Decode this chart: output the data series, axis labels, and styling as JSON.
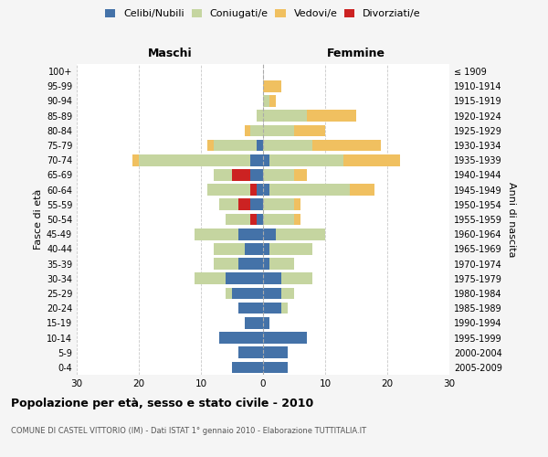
{
  "age_groups": [
    "0-4",
    "5-9",
    "10-14",
    "15-19",
    "20-24",
    "25-29",
    "30-34",
    "35-39",
    "40-44",
    "45-49",
    "50-54",
    "55-59",
    "60-64",
    "65-69",
    "70-74",
    "75-79",
    "80-84",
    "85-89",
    "90-94",
    "95-99",
    "100+"
  ],
  "birth_years": [
    "2005-2009",
    "2000-2004",
    "1995-1999",
    "1990-1994",
    "1985-1989",
    "1980-1984",
    "1975-1979",
    "1970-1974",
    "1965-1969",
    "1960-1964",
    "1955-1959",
    "1950-1954",
    "1945-1949",
    "1940-1944",
    "1935-1939",
    "1930-1934",
    "1925-1929",
    "1920-1924",
    "1915-1919",
    "1910-1914",
    "≤ 1909"
  ],
  "male": {
    "celibi": [
      5,
      4,
      7,
      3,
      4,
      5,
      6,
      4,
      3,
      4,
      1,
      2,
      1,
      2,
      2,
      1,
      0,
      0,
      0,
      0,
      0
    ],
    "coniugati": [
      0,
      0,
      0,
      0,
      0,
      1,
      5,
      4,
      5,
      7,
      5,
      5,
      8,
      6,
      18,
      7,
      2,
      1,
      0,
      0,
      0
    ],
    "vedovi": [
      0,
      0,
      0,
      0,
      0,
      0,
      0,
      0,
      0,
      0,
      0,
      0,
      0,
      0,
      1,
      1,
      1,
      0,
      0,
      0,
      0
    ],
    "divorziati": [
      0,
      0,
      0,
      0,
      0,
      0,
      0,
      0,
      0,
      0,
      1,
      2,
      1,
      3,
      0,
      0,
      0,
      0,
      0,
      0,
      0
    ]
  },
  "female": {
    "nubili": [
      4,
      4,
      7,
      1,
      3,
      3,
      3,
      1,
      1,
      2,
      0,
      0,
      1,
      0,
      1,
      0,
      0,
      0,
      0,
      0,
      0
    ],
    "coniugate": [
      0,
      0,
      0,
      0,
      1,
      2,
      5,
      4,
      7,
      8,
      5,
      5,
      13,
      5,
      12,
      8,
      5,
      7,
      1,
      0,
      0
    ],
    "vedove": [
      0,
      0,
      0,
      0,
      0,
      0,
      0,
      0,
      0,
      0,
      1,
      1,
      4,
      2,
      9,
      11,
      5,
      8,
      1,
      3,
      0
    ],
    "divorziate": [
      0,
      0,
      0,
      0,
      0,
      0,
      0,
      0,
      0,
      0,
      0,
      0,
      0,
      0,
      0,
      0,
      0,
      0,
      0,
      0,
      0
    ]
  },
  "colors": {
    "celibi": "#4472a8",
    "coniugati": "#c5d5a0",
    "vedovi": "#f0c060",
    "divorziati": "#cc2222"
  },
  "xlim": 30,
  "title": "Popolazione per età, sesso e stato civile - 2010",
  "subtitle": "COMUNE DI CASTEL VITTORIO (IM) - Dati ISTAT 1° gennaio 2010 - Elaborazione TUTTITALIA.IT",
  "xlabel_left": "Maschi",
  "xlabel_right": "Femmine",
  "ylabel_left": "Fasce di età",
  "ylabel_right": "Anni di nascita",
  "bg_color": "#f5f5f5",
  "plot_bg": "#ffffff"
}
